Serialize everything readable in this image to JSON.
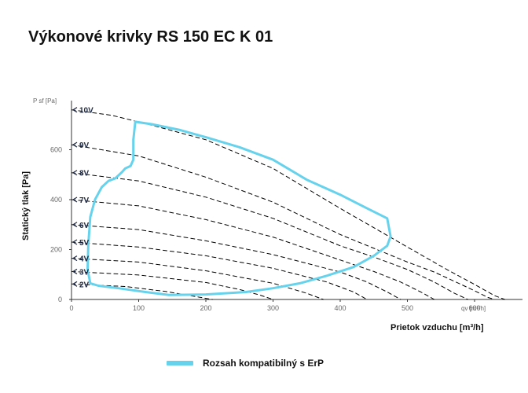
{
  "chart_data": {
    "type": "line",
    "title": "Výkonové krivky RS 150 EC K 01",
    "xlabel": "Prietok vzduchu [m³/h]",
    "ylabel": "Statický tlak [Pa]",
    "x_unit": "qv [m³/h]",
    "y_unit": "P sf [Pa]",
    "xlim": [
      0,
      660
    ],
    "ylim": [
      0,
      760
    ],
    "x_ticks": [
      0,
      100,
      200,
      300,
      400,
      500,
      600
    ],
    "y_ticks": [
      0,
      200,
      400,
      600
    ],
    "grid": false,
    "legend_position": "bottom",
    "series": [
      {
        "name": "10V",
        "style": "dashed",
        "color": "#000000",
        "x": [
          0,
          60,
          120,
          200,
          300,
          400,
          500,
          560,
          600,
          630,
          645
        ],
        "y": [
          760,
          738,
          698,
          640,
          525,
          365,
          210,
          118,
          60,
          15,
          0
        ]
      },
      {
        "name": "9V",
        "style": "dashed",
        "color": "#000000",
        "x": [
          0,
          100,
          200,
          300,
          400,
          450,
          500,
          540,
          580,
          600,
          620,
          630
        ],
        "y": [
          620,
          575,
          490,
          390,
          260,
          205,
          150,
          110,
          60,
          35,
          8,
          0
        ]
      },
      {
        "name": "8V",
        "style": "dashed",
        "color": "#000000",
        "x": [
          0,
          100,
          200,
          300,
          400,
          450,
          500,
          540,
          570,
          590
        ],
        "y": [
          508,
          475,
          410,
          325,
          215,
          170,
          120,
          70,
          25,
          0
        ]
      },
      {
        "name": "7V",
        "style": "dashed",
        "color": "#000000",
        "x": [
          0,
          100,
          200,
          300,
          400,
          450,
          490,
          520,
          540
        ],
        "y": [
          400,
          375,
          320,
          250,
          158,
          112,
          70,
          30,
          0
        ]
      },
      {
        "name": "6V",
        "style": "dashed",
        "color": "#000000",
        "x": [
          0,
          100,
          200,
          300,
          400,
          440,
          470,
          490
        ],
        "y": [
          300,
          280,
          235,
          180,
          110,
          70,
          30,
          0
        ]
      },
      {
        "name": "5V",
        "style": "dashed",
        "color": "#000000",
        "x": [
          0,
          100,
          200,
          300,
          380,
          420,
          440
        ],
        "y": [
          230,
          210,
          175,
          125,
          70,
          30,
          0
        ]
      },
      {
        "name": "4V",
        "style": "dashed",
        "color": "#000000",
        "x": [
          0,
          100,
          200,
          300,
          350,
          375
        ],
        "y": [
          165,
          150,
          115,
          65,
          25,
          0
        ]
      },
      {
        "name": "3V",
        "style": "dashed",
        "color": "#000000",
        "x": [
          0,
          100,
          200,
          250,
          280,
          300
        ],
        "y": [
          112,
          98,
          68,
          40,
          18,
          0
        ]
      },
      {
        "name": "2V",
        "style": "dashed",
        "color": "#000000",
        "x": [
          0,
          80,
          140,
          180,
          210
        ],
        "y": [
          62,
          52,
          32,
          14,
          0
        ]
      },
      {
        "name": "Rozsah kompatibilný s ErP",
        "style": "solid",
        "color": "#67d2ec",
        "x": [
          95,
          120,
          160,
          200,
          250,
          300,
          350,
          400,
          440,
          470,
          475,
          470,
          450,
          420,
          380,
          340,
          300,
          260,
          200,
          145,
          110,
          70,
          40,
          28,
          24,
          25,
          28,
          35,
          45,
          55,
          65,
          75,
          80,
          88,
          92,
          92,
          95
        ],
        "y": [
          712,
          702,
          680,
          650,
          610,
          560,
          480,
          420,
          365,
          325,
          253,
          215,
          175,
          130,
          95,
          65,
          45,
          30,
          20,
          18,
          30,
          45,
          55,
          65,
          120,
          220,
          330,
          400,
          450,
          475,
          485,
          510,
          525,
          535,
          560,
          640,
          712
        ]
      }
    ]
  }
}
